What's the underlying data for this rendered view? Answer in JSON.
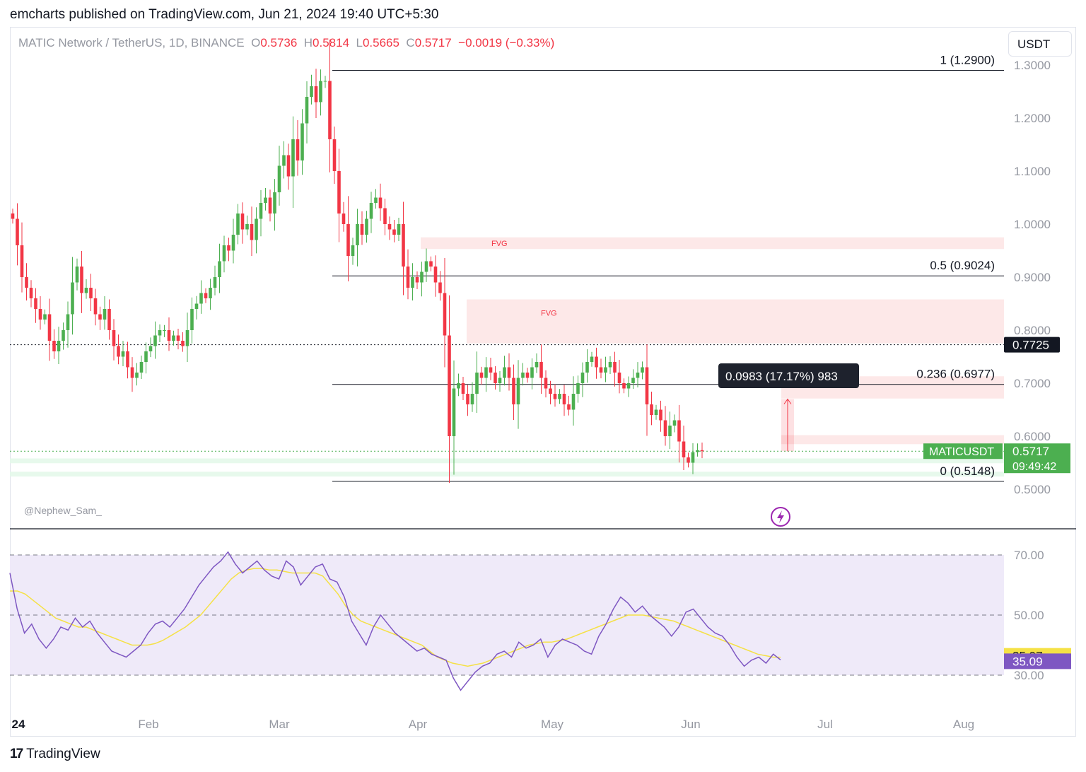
{
  "header": {
    "text": "emcharts published on TradingView.com, Jun 21, 2024 19:40 UTC+5:30"
  },
  "ohlc": {
    "symbol": "MATIC Network / TetherUS, 1D, BINANCE",
    "o_label": "O",
    "o": "0.5736",
    "h_label": "H",
    "h": "0.5814",
    "l_label": "L",
    "l": "0.5665",
    "c_label": "C",
    "c": "0.5717",
    "change": "−0.0019 (−0.33%)"
  },
  "currency_button": "USDT",
  "watermark": "@Nephew_Sam_",
  "footer": {
    "brand": "TradingView",
    "logo_mark": "17"
  },
  "colors": {
    "up": "#4caf50",
    "down": "#f23645",
    "fvg": "#fde4e4",
    "demand": "#e4f8ea",
    "rsi": "#7e57c2",
    "rsi_ma": "#f5e146",
    "rsi_band": "#efeaf9"
  },
  "chart_data": [
    {
      "type": "candlestick",
      "symbol": "MATICUSDT",
      "timeframe": "1D",
      "y_axis": {
        "ticks": [
          "1.3000",
          "1.2000",
          "1.1000",
          "1.0000",
          "0.9000",
          "0.8000",
          "0.7000",
          "0.6000",
          "0.5000"
        ],
        "range": [
          0.44,
          1.33
        ]
      },
      "x_axis": {
        "ticks": [
          "24",
          "Feb",
          "Mar",
          "Apr",
          "May",
          "Jun",
          "Jul",
          "Aug"
        ]
      },
      "last_price": {
        "label": "MATICUSDT",
        "value": "0.5717",
        "countdown": "09:49:42",
        "value_num": 0.5717
      },
      "dotted_level": {
        "value": "0.7725",
        "value_num": 0.7725
      },
      "fib_levels": [
        {
          "label": "1 (1.2900)",
          "value": 1.29
        },
        {
          "label": "0.5 (0.9024)",
          "value": 0.9024
        },
        {
          "label": "0.236 (0.6977)",
          "value": 0.6977
        },
        {
          "label": "0 (0.5148)",
          "value": 0.5148
        }
      ],
      "zones": [
        {
          "label": "FVG",
          "kind": "fvg",
          "top": 0.975,
          "bottom": 0.953
        },
        {
          "label": "FVG",
          "kind": "fvg",
          "top": 0.858,
          "bottom": 0.775
        },
        {
          "label": "",
          "kind": "fvg",
          "top": 0.713,
          "bottom": 0.671
        },
        {
          "label": "",
          "kind": "fvg",
          "top": 0.602,
          "bottom": 0.585
        },
        {
          "label": "",
          "kind": "demand",
          "top": 0.558,
          "bottom": 0.549
        },
        {
          "label": "",
          "kind": "demand",
          "top": 0.533,
          "bottom": 0.524
        }
      ],
      "measure": {
        "label": "0.0983 (17.17%) 983",
        "from": 0.5717,
        "to": 0.67
      },
      "closes": [
        1.01,
        0.96,
        0.9,
        0.88,
        0.86,
        0.84,
        0.82,
        0.83,
        0.78,
        0.76,
        0.78,
        0.8,
        0.83,
        0.89,
        0.92,
        0.87,
        0.88,
        0.86,
        0.83,
        0.82,
        0.84,
        0.8,
        0.77,
        0.75,
        0.76,
        0.73,
        0.71,
        0.72,
        0.74,
        0.76,
        0.77,
        0.79,
        0.8,
        0.8,
        0.78,
        0.79,
        0.78,
        0.77,
        0.8,
        0.84,
        0.85,
        0.87,
        0.86,
        0.88,
        0.9,
        0.93,
        0.96,
        0.95,
        0.98,
        1.02,
        0.99,
        1.0,
        0.97,
        1.01,
        1.04,
        1.05,
        1.02,
        1.06,
        1.11,
        1.13,
        1.09,
        1.16,
        1.12,
        1.19,
        1.24,
        1.26,
        1.23,
        1.27,
        1.27,
        1.16,
        1.1,
        1.02,
        1.0,
        0.94,
        0.96,
        1.0,
        0.98,
        1.01,
        1.04,
        1.05,
        1.03,
        1.0,
        0.99,
        0.98,
        1.0,
        0.92,
        0.88,
        0.9,
        0.89,
        0.91,
        0.93,
        0.92,
        0.89,
        0.87,
        0.79,
        0.6,
        0.69,
        0.7,
        0.68,
        0.66,
        0.68,
        0.72,
        0.71,
        0.73,
        0.72,
        0.7,
        0.71,
        0.73,
        0.71,
        0.66,
        0.71,
        0.72,
        0.71,
        0.73,
        0.74,
        0.71,
        0.69,
        0.68,
        0.67,
        0.68,
        0.66,
        0.65,
        0.68,
        0.7,
        0.72,
        0.74,
        0.75,
        0.73,
        0.72,
        0.73,
        0.74,
        0.72,
        0.7,
        0.69,
        0.7,
        0.71,
        0.72,
        0.73,
        0.66,
        0.64,
        0.65,
        0.63,
        0.6,
        0.62,
        0.63,
        0.59,
        0.56,
        0.55,
        0.57,
        0.5736,
        0.5717
      ]
    },
    {
      "type": "line",
      "name": "RSI",
      "y_axis": {
        "ticks": [
          "70.00",
          "50.00",
          "30.00"
        ],
        "range": [
          22,
          74
        ]
      },
      "band": [
        30,
        70
      ],
      "rsi_label": "35.09",
      "ma_label": "35.97",
      "rsi": [
        64,
        52,
        44,
        47,
        42,
        39,
        42,
        46,
        45,
        49,
        46,
        48,
        44,
        41,
        38,
        37,
        36,
        38,
        40,
        44,
        47,
        48,
        46,
        49,
        52,
        56,
        60,
        63,
        66,
        68,
        71,
        67,
        64,
        66,
        68,
        65,
        63,
        62,
        68,
        66,
        60,
        63,
        66,
        67,
        62,
        61,
        56,
        48,
        44,
        40,
        46,
        50,
        47,
        44,
        42,
        40,
        38,
        39,
        37,
        36,
        35,
        29,
        25,
        28,
        31,
        33,
        34,
        37,
        38,
        36,
        41,
        39,
        40,
        42,
        36,
        40,
        42,
        41,
        40,
        38,
        37,
        43,
        47,
        52,
        56,
        54,
        51,
        53,
        50,
        48,
        46,
        43,
        46,
        51,
        52,
        49,
        46,
        44,
        43,
        40,
        36,
        33,
        35,
        36,
        34,
        37,
        35.09
      ],
      "ma": [
        58,
        58,
        57,
        55,
        53,
        51,
        49,
        48,
        47,
        46,
        46,
        45,
        44,
        43,
        42,
        41,
        40,
        40,
        40,
        40.5,
        41.5,
        43,
        44.5,
        46,
        48,
        50,
        53,
        56,
        59,
        62,
        64,
        65,
        65.5,
        65.5,
        65,
        65,
        64.5,
        64,
        64,
        64,
        64,
        63,
        60,
        57,
        53,
        50,
        48,
        47,
        46,
        45,
        44,
        43,
        42,
        41,
        40,
        38,
        36,
        35,
        34,
        33.5,
        33,
        33.5,
        34,
        35,
        36,
        37,
        38,
        39,
        40,
        40.5,
        41,
        41,
        41.5,
        42,
        43,
        44,
        45,
        46,
        47,
        48,
        49,
        50,
        50,
        50,
        49.5,
        49,
        48.5,
        48,
        47,
        46,
        45,
        44,
        43,
        42,
        41,
        40,
        39,
        38,
        37,
        36.5,
        36,
        35.97
      ]
    }
  ]
}
